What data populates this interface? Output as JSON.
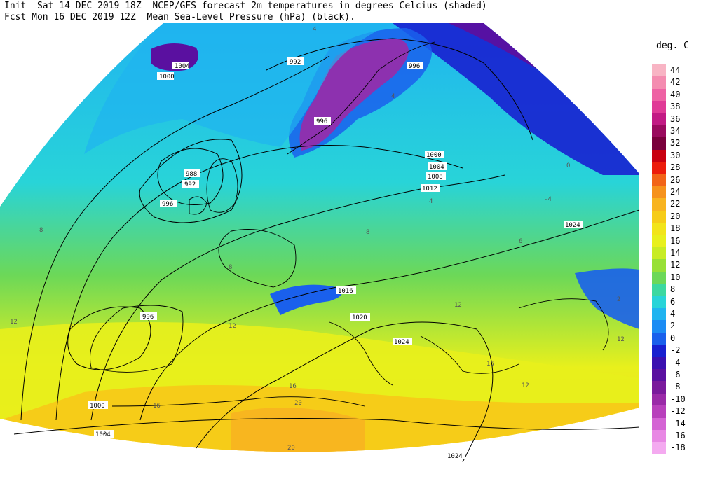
{
  "header": {
    "line1": "Init  Sat 14 DEC 2019 18Z  NCEP/GFS forecast 2m temperatures in degrees Celcius (shaded)",
    "line2": "Fcst Mon 16 DEC 2019 12Z  Mean Sea-Level Pressure (hPa) (black)."
  },
  "legend": {
    "title": "deg. C",
    "entries": [
      {
        "label": "44",
        "color": "#f8b4c4"
      },
      {
        "label": "42",
        "color": "#f48cb0"
      },
      {
        "label": "40",
        "color": "#ee62a4"
      },
      {
        "label": "38",
        "color": "#e03a96"
      },
      {
        "label": "36",
        "color": "#c21a84"
      },
      {
        "label": "34",
        "color": "#9a0a5e"
      },
      {
        "label": "32",
        "color": "#7a003c"
      },
      {
        "label": "30",
        "color": "#c80010"
      },
      {
        "label": "28",
        "color": "#ec1c0c"
      },
      {
        "label": "26",
        "color": "#f26418"
      },
      {
        "label": "24",
        "color": "#f6921c"
      },
      {
        "label": "22",
        "color": "#f8b420"
      },
      {
        "label": "20",
        "color": "#f6cc18"
      },
      {
        "label": "18",
        "color": "#f2e41a"
      },
      {
        "label": "16",
        "color": "#e8f01c"
      },
      {
        "label": "14",
        "color": "#c8ec24"
      },
      {
        "label": "12",
        "color": "#98e036"
      },
      {
        "label": "10",
        "color": "#6cd858"
      },
      {
        "label": "8",
        "color": "#3cd8a0"
      },
      {
        "label": "6",
        "color": "#28d4d8"
      },
      {
        "label": "4",
        "color": "#20b4f0"
      },
      {
        "label": "2",
        "color": "#1c8cf4"
      },
      {
        "label": "0",
        "color": "#1a60ec"
      },
      {
        "label": "-2",
        "color": "#1820d0"
      },
      {
        "label": "-4",
        "color": "#3a10b0"
      },
      {
        "label": "-6",
        "color": "#5a10a0"
      },
      {
        "label": "-8",
        "color": "#7a1a9c"
      },
      {
        "label": "-10",
        "color": "#9a2aa8"
      },
      {
        "label": "-12",
        "color": "#b840bc"
      },
      {
        "label": "-14",
        "color": "#d464d4"
      },
      {
        "label": "-16",
        "color": "#e888e4"
      },
      {
        "label": "-18",
        "color": "#f4aaf0"
      }
    ]
  },
  "map": {
    "colors": {
      "outline": "#000000",
      "contour": "#000000",
      "isotherm": "#808080"
    },
    "pressure_labels": [
      "992",
      "1004",
      "1000",
      "996",
      "996",
      "1000",
      "1004",
      "1008",
      "1012",
      "1024",
      "988",
      "992",
      "996",
      "1016",
      "1020",
      "1024",
      "996",
      "1000",
      "1004",
      "1024"
    ],
    "temperature_labels": [
      "4",
      "8",
      "12",
      "16",
      "20",
      "2",
      "0",
      "6",
      "-2",
      "-4"
    ]
  }
}
